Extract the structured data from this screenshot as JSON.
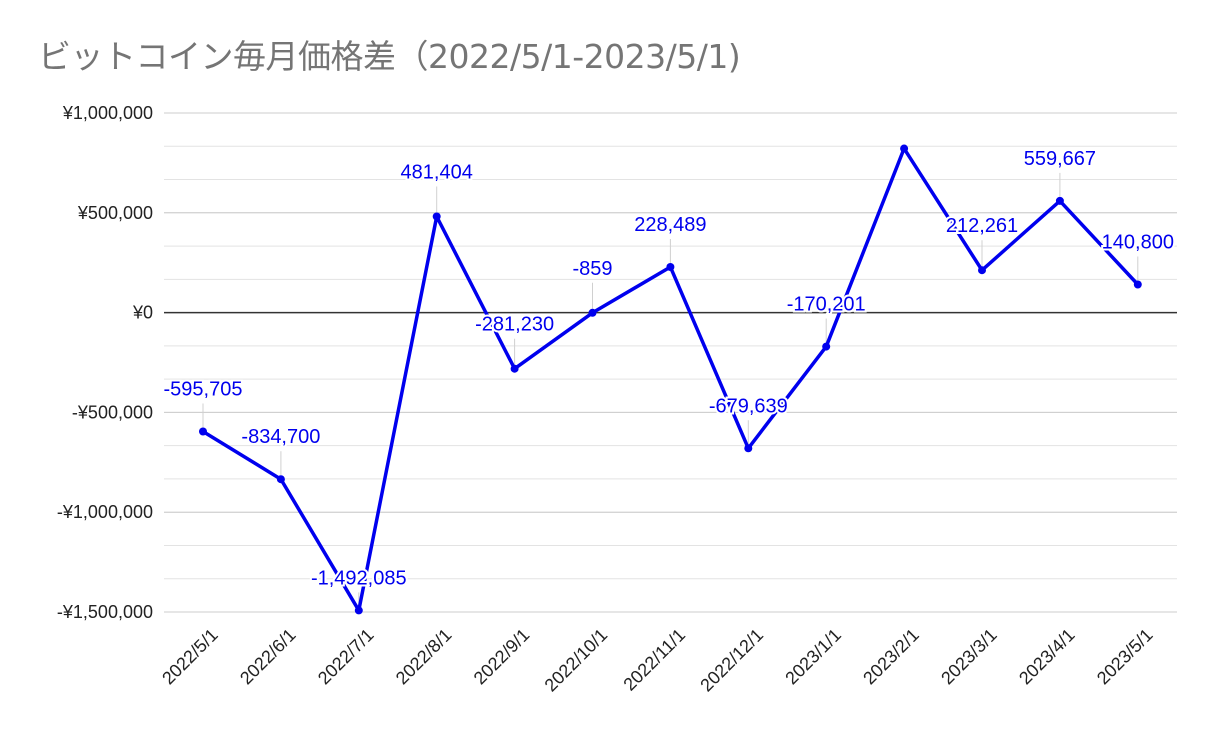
{
  "chart_data": {
    "type": "line",
    "title": "ビットコイン毎月価格差（2022/5/1-2023/5/1)",
    "xlabel": "",
    "ylabel": "",
    "categories": [
      "2022/5/1",
      "2022/6/1",
      "2022/7/1",
      "2022/8/1",
      "2022/9/1",
      "2022/10/1",
      "2022/11/1",
      "2022/12/1",
      "2023/1/1",
      "2023/2/1",
      "2023/3/1",
      "2023/4/1",
      "2023/5/1"
    ],
    "values": [
      -595705,
      -834700,
      -1492085,
      481404,
      -281230,
      -859,
      228489,
      -679639,
      -170201,
      822000,
      212261,
      559667,
      140800
    ],
    "data_labels": [
      "-595,705",
      "-834,700",
      "-1,492,085",
      "481,404",
      "-281,230",
      "-859",
      "228,489",
      "-679,639",
      "-170,201",
      "",
      "212,261",
      "559,667",
      "140,800"
    ],
    "ylim": [
      -1500000,
      1000000
    ],
    "y_ticks": [
      1000000,
      500000,
      0,
      -500000,
      -1000000,
      -1500000
    ],
    "y_tick_labels": [
      "¥1,000,000",
      "¥500,000",
      "¥0",
      "-¥500,000",
      "-¥1,000,000",
      "-¥1,500,000"
    ],
    "grid": true,
    "legend": "none",
    "colors": {
      "line": "#0000ee",
      "label": "#0000ee",
      "grid": "#cccccc",
      "zero": "#333333",
      "title": "#757575"
    }
  }
}
